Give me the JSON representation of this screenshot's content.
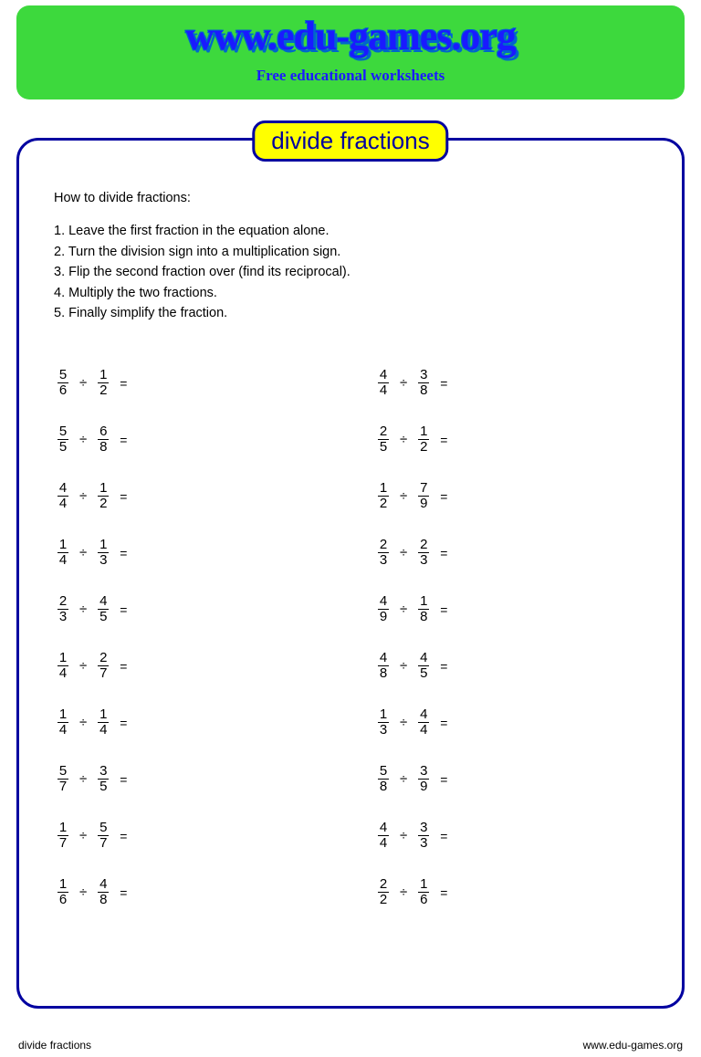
{
  "header": {
    "title": "www.edu-games.org",
    "subtitle": "Free educational worksheets",
    "bg_color": "#3dd93d",
    "title_color": "#1a1aff"
  },
  "worksheet": {
    "title": "divide fractions",
    "badge_bg": "#ffff00",
    "border_color": "#0000a0",
    "instructions_heading": "How to divide fractions:",
    "instructions": [
      "1. Leave the first fraction in the equation alone.",
      "2. Turn the division sign into a multiplication sign.",
      "3. Flip the second fraction over (find its reciprocal).",
      "4. Multiply the two fractions.",
      "5. Finally simplify the fraction."
    ],
    "operator": "÷",
    "equals": "=",
    "left_column": [
      {
        "a_num": "5",
        "a_den": "6",
        "b_num": "1",
        "b_den": "2"
      },
      {
        "a_num": "5",
        "a_den": "5",
        "b_num": "6",
        "b_den": "8"
      },
      {
        "a_num": "4",
        "a_den": "4",
        "b_num": "1",
        "b_den": "2"
      },
      {
        "a_num": "1",
        "a_den": "4",
        "b_num": "1",
        "b_den": "3"
      },
      {
        "a_num": "2",
        "a_den": "3",
        "b_num": "4",
        "b_den": "5"
      },
      {
        "a_num": "1",
        "a_den": "4",
        "b_num": "2",
        "b_den": "7"
      },
      {
        "a_num": "1",
        "a_den": "4",
        "b_num": "1",
        "b_den": "4"
      },
      {
        "a_num": "5",
        "a_den": "7",
        "b_num": "3",
        "b_den": "5"
      },
      {
        "a_num": "1",
        "a_den": "7",
        "b_num": "5",
        "b_den": "7"
      },
      {
        "a_num": "1",
        "a_den": "6",
        "b_num": "4",
        "b_den": "8"
      }
    ],
    "right_column": [
      {
        "a_num": "4",
        "a_den": "4",
        "b_num": "3",
        "b_den": "8"
      },
      {
        "a_num": "2",
        "a_den": "5",
        "b_num": "1",
        "b_den": "2"
      },
      {
        "a_num": "1",
        "a_den": "2",
        "b_num": "7",
        "b_den": "9"
      },
      {
        "a_num": "2",
        "a_den": "3",
        "b_num": "2",
        "b_den": "3"
      },
      {
        "a_num": "4",
        "a_den": "9",
        "b_num": "1",
        "b_den": "8"
      },
      {
        "a_num": "4",
        "a_den": "8",
        "b_num": "4",
        "b_den": "5"
      },
      {
        "a_num": "1",
        "a_den": "3",
        "b_num": "4",
        "b_den": "4"
      },
      {
        "a_num": "5",
        "a_den": "8",
        "b_num": "3",
        "b_den": "9"
      },
      {
        "a_num": "4",
        "a_den": "4",
        "b_num": "3",
        "b_den": "3"
      },
      {
        "a_num": "2",
        "a_den": "2",
        "b_num": "1",
        "b_den": "6"
      }
    ]
  },
  "footer": {
    "left": "divide fractions",
    "right": "www.edu-games.org"
  }
}
